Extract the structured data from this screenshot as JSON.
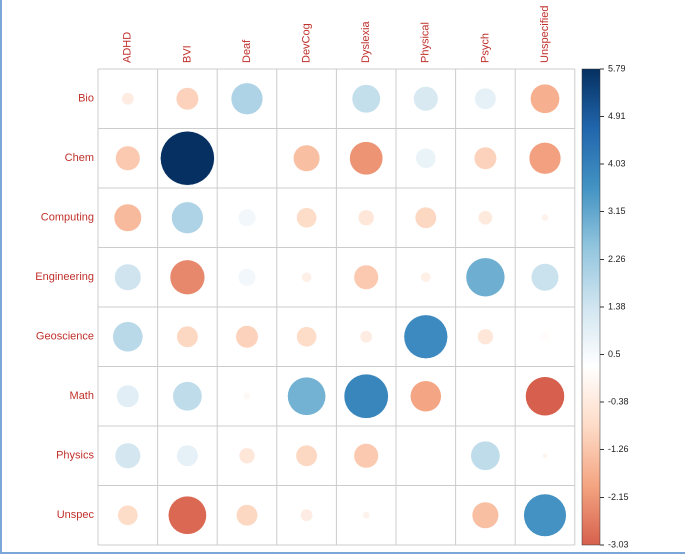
{
  "chart_data": {
    "type": "corrplot",
    "categories": [
      "ADHD",
      "BVI",
      "Deaf",
      "DevCog",
      "Dyslexia",
      "Physical",
      "Psych",
      "Unspecified"
    ],
    "rows": [
      "Bio",
      "Chem",
      "Computing",
      "Engineering",
      "Geoscience",
      "Math",
      "Physics",
      "Unspec"
    ],
    "values": [
      [
        -0.3,
        -1.0,
        2.0,
        null,
        1.6,
        1.2,
        0.9,
        -1.7
      ],
      [
        -1.2,
        5.79,
        null,
        -1.4,
        -2.2,
        0.8,
        -1.0,
        -2.0
      ],
      [
        -1.5,
        2.0,
        0.6,
        -0.8,
        -0.5,
        -0.9,
        -0.4,
        -0.1
      ],
      [
        1.4,
        -2.4,
        0.6,
        -0.2,
        -1.2,
        -0.2,
        3.0,
        1.5
      ],
      [
        1.8,
        -0.9,
        -1.0,
        -0.8,
        -0.3,
        3.8,
        -0.5,
        0.2
      ],
      [
        1.0,
        1.7,
        0.1,
        2.9,
        3.9,
        -1.9,
        null,
        -3.03
      ],
      [
        1.3,
        0.9,
        -0.5,
        -0.9,
        -1.2,
        null,
        1.7,
        -0.05
      ],
      [
        -0.8,
        -2.9,
        -0.9,
        -0.3,
        -0.1,
        null,
        -1.4,
        3.6
      ]
    ],
    "colorscale": [
      "#d6604d",
      "#f4a582",
      "#fddbc7",
      "#ffffff",
      "#d1e5f0",
      "#92c5de",
      "#4393c3",
      "#2166ac",
      "#053061"
    ],
    "clim": [
      -3.03,
      5.79
    ],
    "cticks": [
      5.79,
      4.91,
      4.03,
      3.15,
      2.26,
      1.38,
      0.5,
      -0.38,
      -1.26,
      -2.15,
      -3.03
    ],
    "grid": true
  }
}
